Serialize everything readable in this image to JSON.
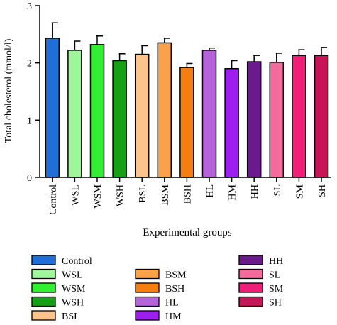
{
  "chart_data": {
    "type": "bar",
    "categories": [
      "Control",
      "WSL",
      "WSM",
      "WSH",
      "BSL",
      "BSM",
      "BSH",
      "HL",
      "HM",
      "HH",
      "SL",
      "SM",
      "SH"
    ],
    "values": [
      2.43,
      2.22,
      2.32,
      2.04,
      2.15,
      2.35,
      1.92,
      2.22,
      1.9,
      2.02,
      2.01,
      2.13,
      2.13
    ],
    "errors": [
      0.27,
      0.16,
      0.15,
      0.12,
      0.15,
      0.08,
      0.07,
      0.04,
      0.14,
      0.11,
      0.16,
      0.1,
      0.14
    ],
    "colors": [
      "#1f6fd6",
      "#9ff59a",
      "#33ee33",
      "#16a016",
      "#fcc48d",
      "#f9a24b",
      "#f57e12",
      "#b662db",
      "#9c1ff0",
      "#6a1a8c",
      "#f26b9c",
      "#ef1f77",
      "#c81558"
    ],
    "ylabel": "Total cholesterol (mmol/l)",
    "xlabel": "Experimental groups",
    "ylim": [
      0,
      3
    ],
    "yticks": [
      "0",
      "1",
      "2",
      "3"
    ],
    "grid": false,
    "legend_placement": "bottom, three columns"
  }
}
